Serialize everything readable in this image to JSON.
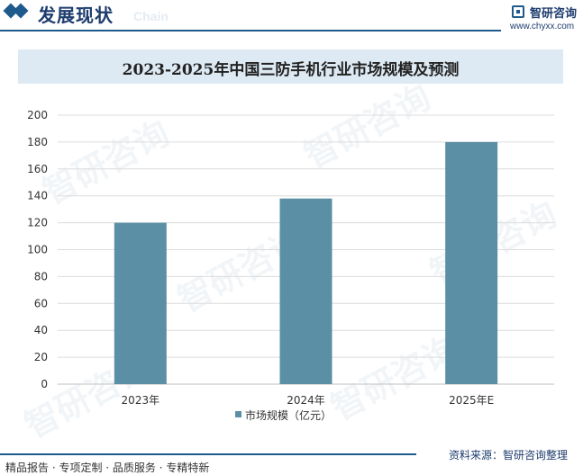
{
  "header": {
    "section_title": "发展现状",
    "section_subtitle": "Chain",
    "brand_name": "智研咨询",
    "brand_url": "www.chyxx.com"
  },
  "watermark_text": "智研咨询",
  "colors": {
    "bar": "#5b8fa6",
    "accent": "#1e5a8c",
    "title_band": "#dde9f3",
    "grid": "#dcdcdc"
  },
  "chart_data": {
    "type": "bar",
    "title": "2023-2025年中国三防手机行业市场规模及预测",
    "categories": [
      "2023年",
      "2024年",
      "2025年E"
    ],
    "series": [
      {
        "name": "市场规模（亿元）",
        "values": [
          120,
          138,
          180
        ]
      }
    ],
    "ylim": [
      0,
      200
    ],
    "yticks": [
      0,
      20,
      40,
      60,
      80,
      100,
      120,
      140,
      160,
      180,
      200
    ],
    "xlabel": "",
    "ylabel": "",
    "grid": true,
    "legend_position": "bottom"
  },
  "footer": {
    "tagline": "精品报告 · 专项定制 · 品质服务 · 专精特新",
    "source": "资料来源：智研咨询整理"
  }
}
